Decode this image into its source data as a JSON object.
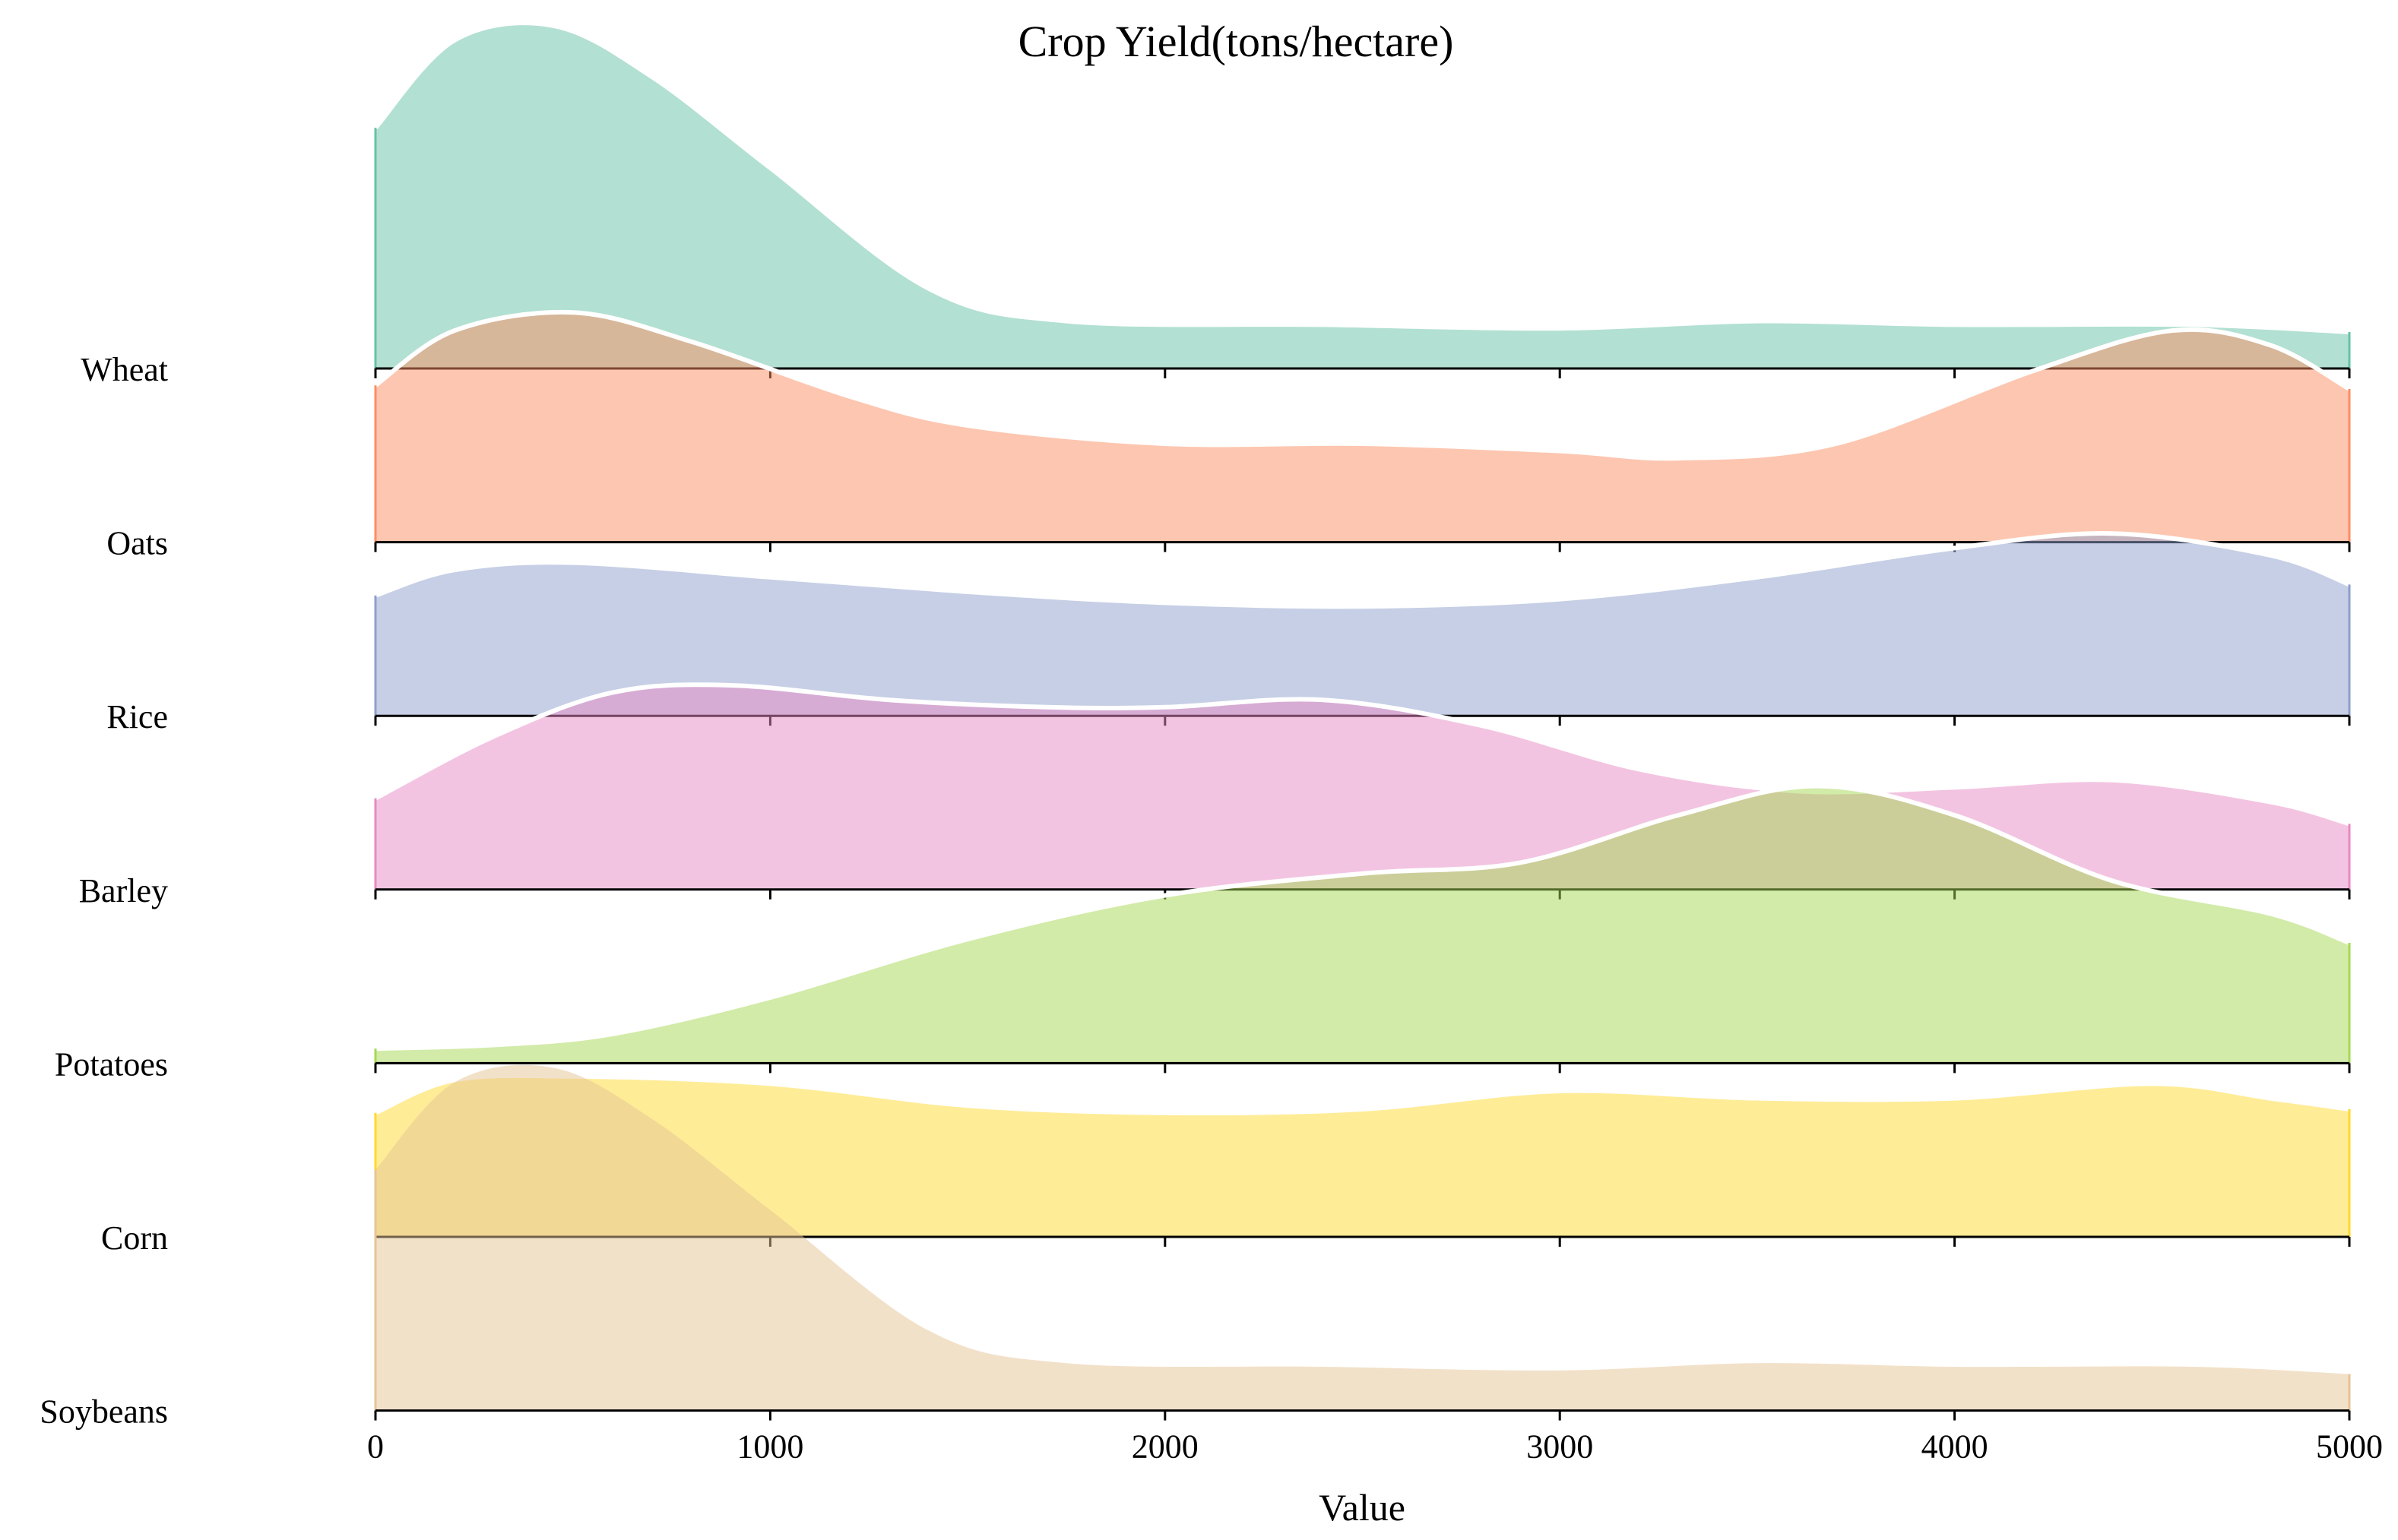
{
  "chart_data": {
    "type": "area",
    "subtype": "ridgeline",
    "title": "Crop Yield(tons/hectare)",
    "xlabel": "Value",
    "ylabel": "",
    "xlim": [
      0,
      5000
    ],
    "xticks": [
      0,
      1000,
      2000,
      3000,
      4000,
      5000
    ],
    "tick_labels": [
      "0",
      "1000",
      "2000",
      "3000",
      "4000",
      "5000"
    ],
    "grid": false,
    "legend": "none",
    "series": [
      {
        "name": "Wheat",
        "color": "#66c2a5",
        "x": [
          0,
          200,
          450,
          700,
          1000,
          1400,
          1750,
          2400,
          3000,
          3500,
          4000,
          4600,
          5000
        ],
        "values": [
          0.66,
          0.9,
          0.94,
          0.8,
          0.55,
          0.22,
          0.13,
          0.12,
          0.11,
          0.13,
          0.12,
          0.12,
          0.1
        ]
      },
      {
        "name": "Oats",
        "color": "#fc8d62",
        "x": [
          0,
          200,
          500,
          800,
          1200,
          1500,
          2000,
          2500,
          3000,
          3300,
          3700,
          4200,
          4550,
          4800,
          5000
        ],
        "values": [
          0.43,
          0.58,
          0.63,
          0.55,
          0.4,
          0.32,
          0.27,
          0.27,
          0.25,
          0.23,
          0.27,
          0.47,
          0.58,
          0.54,
          0.42
        ]
      },
      {
        "name": "Rice",
        "color": "#8da0cb",
        "x": [
          0,
          200,
          500,
          1000,
          1500,
          2000,
          2500,
          3000,
          3500,
          4000,
          4400,
          4800,
          5000
        ],
        "values": [
          0.33,
          0.4,
          0.42,
          0.38,
          0.34,
          0.31,
          0.3,
          0.32,
          0.38,
          0.46,
          0.5,
          0.44,
          0.36
        ]
      },
      {
        "name": "Barley",
        "color": "#e78ac3",
        "x": [
          0,
          300,
          600,
          900,
          1300,
          1700,
          2000,
          2400,
          2800,
          3200,
          3600,
          4000,
          4400,
          4800,
          5000
        ],
        "values": [
          0.25,
          0.42,
          0.54,
          0.56,
          0.52,
          0.5,
          0.5,
          0.52,
          0.45,
          0.33,
          0.27,
          0.28,
          0.3,
          0.24,
          0.18
        ]
      },
      {
        "name": "Potatoes",
        "color": "#a6d854",
        "x": [
          0,
          300,
          600,
          1000,
          1500,
          2000,
          2500,
          2900,
          3300,
          3650,
          4000,
          4400,
          4800,
          5000
        ],
        "values": [
          0.04,
          0.05,
          0.08,
          0.18,
          0.34,
          0.46,
          0.52,
          0.55,
          0.68,
          0.76,
          0.68,
          0.5,
          0.41,
          0.33
        ]
      },
      {
        "name": "Corn",
        "color": "#ffd92f",
        "x": [
          0,
          200,
          500,
          1000,
          1500,
          2000,
          2500,
          3000,
          3500,
          4000,
          4500,
          4800,
          5000
        ],
        "values": [
          0.34,
          0.43,
          0.44,
          0.42,
          0.36,
          0.34,
          0.35,
          0.4,
          0.38,
          0.38,
          0.42,
          0.38,
          0.35
        ]
      },
      {
        "name": "Soybeans",
        "color": "#e5c494",
        "x": [
          0,
          200,
          450,
          700,
          1000,
          1400,
          1750,
          2400,
          3000,
          3500,
          4000,
          4600,
          5000
        ],
        "values": [
          0.66,
          0.9,
          0.94,
          0.8,
          0.55,
          0.22,
          0.13,
          0.12,
          0.11,
          0.13,
          0.12,
          0.12,
          0.1
        ]
      }
    ]
  }
}
